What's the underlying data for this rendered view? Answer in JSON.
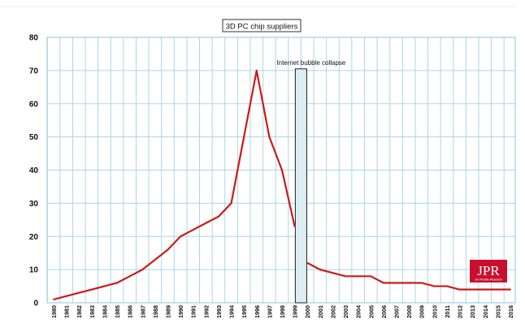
{
  "chart_data": {
    "type": "line",
    "title": "3D PC chip suppliers",
    "xlabel": "",
    "ylabel": "",
    "ylim": [
      0,
      80
    ],
    "yticks": [
      0,
      10,
      20,
      30,
      40,
      50,
      60,
      70,
      80
    ],
    "grid": true,
    "x": [
      1980,
      1981,
      1982,
      1983,
      1984,
      1985,
      1986,
      1987,
      1988,
      1989,
      1990,
      1991,
      1992,
      1993,
      1994,
      1995,
      1996,
      1997,
      1998,
      1999,
      2000,
      2001,
      2002,
      2003,
      2004,
      2005,
      2006,
      2007,
      2008,
      2009,
      2010,
      2011,
      2012,
      2013,
      2014,
      2015,
      2016
    ],
    "series": [
      {
        "segments": [
          {
            "x": [
              1980,
              1981,
              1982,
              1983,
              1984,
              1985,
              1986,
              1987,
              1988,
              1989,
              1990,
              1991,
              1992,
              1993,
              1994,
              1995,
              1996,
              1997,
              1998,
              1999
            ],
            "y": [
              1,
              2,
              3,
              4,
              5,
              6,
              8,
              10,
              13,
              16,
              20,
              22,
              24,
              26,
              30,
              50,
              70,
              50,
              40,
              23
            ]
          },
          {
            "x": [
              2000,
              2001,
              2002,
              2003,
              2004,
              2005,
              2006,
              2007,
              2008,
              2009,
              2010,
              2011,
              2012,
              2013,
              2014,
              2015,
              2016
            ],
            "y": [
              12,
              10,
              9,
              8,
              8,
              8,
              6,
              6,
              6,
              6,
              5,
              5,
              4,
              4,
              4,
              4,
              4
            ]
          }
        ],
        "color": "#cc1a1a"
      }
    ],
    "annotations": [
      {
        "text": "Internet bubble collapse",
        "x_start": 1999.05,
        "x_end": 1999.95,
        "y_top": 70.5
      }
    ],
    "logo": {
      "text": "JPR",
      "subtitle": "Jon Peddie Research",
      "color": "#c8102e"
    }
  }
}
